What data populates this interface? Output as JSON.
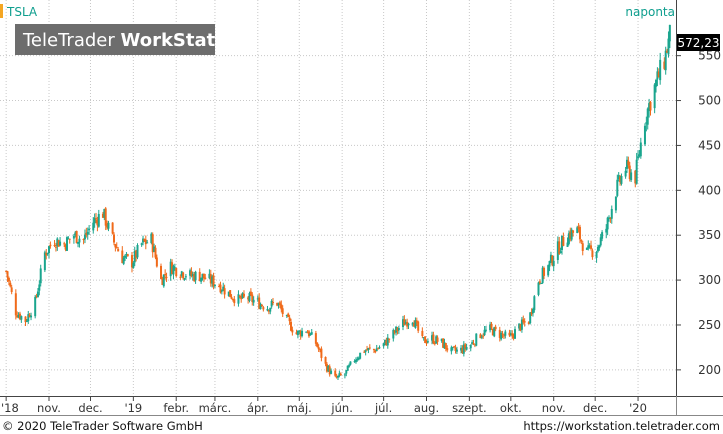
{
  "header": {
    "symbol": "TSLA",
    "interval": "naponta",
    "watermark_light": "TeleTrader ",
    "watermark_bold": "WorkStation"
  },
  "footer": {
    "copyright": "© 2020 TeleTrader Software GmbH",
    "url": "https://workstation.teletrader.com"
  },
  "colors": {
    "up": "#1aa58e",
    "down": "#f06a1a",
    "grid": "#c8c8c8",
    "accent": "#f5a623",
    "last_badge": "#000000"
  },
  "chart_data": {
    "type": "candlestick",
    "symbol": "TSLA",
    "interval": "naponta",
    "last_price": "572,23",
    "y_ticks": [
      "550",
      "500",
      "450",
      "400",
      "350",
      "300",
      "250",
      "200"
    ],
    "y_values": [
      550,
      500,
      450,
      400,
      350,
      300,
      250,
      200
    ],
    "ylim": [
      172,
      612
    ],
    "x_ticks": [
      "'18",
      "nov.",
      "dec.",
      "'19",
      "febr.",
      "márc.",
      "ápr.",
      "máj.",
      "jún.",
      "júl.",
      "aug.",
      "szept.",
      "okt.",
      "nov.",
      "dec.",
      "'20"
    ],
    "x_tick_dates": [
      "2018-10-01",
      "2018-11-01",
      "2018-12-01",
      "2019-01-01",
      "2019-02-01",
      "2019-03-01",
      "2019-04-01",
      "2019-05-01",
      "2019-06-01",
      "2019-07-01",
      "2019-08-01",
      "2019-09-01",
      "2019-10-01",
      "2019-11-01",
      "2019-12-01",
      "2020-01-01"
    ],
    "xlim": [
      "2018-09-28",
      "2020-01-27"
    ],
    "closes": [
      {
        "date": "2018-10-01",
        "close": 310
      },
      {
        "date": "2018-10-08",
        "close": 265
      },
      {
        "date": "2018-10-15",
        "close": 255
      },
      {
        "date": "2018-10-22",
        "close": 275
      },
      {
        "date": "2018-10-29",
        "close": 330
      },
      {
        "date": "2018-11-05",
        "close": 345
      },
      {
        "date": "2018-11-12",
        "close": 340
      },
      {
        "date": "2018-11-19",
        "close": 350
      },
      {
        "date": "2018-11-26",
        "close": 345
      },
      {
        "date": "2018-12-03",
        "close": 365
      },
      {
        "date": "2018-12-10",
        "close": 375
      },
      {
        "date": "2018-12-17",
        "close": 345
      },
      {
        "date": "2018-12-24",
        "close": 325
      },
      {
        "date": "2018-12-31",
        "close": 320
      },
      {
        "date": "2019-01-07",
        "close": 340
      },
      {
        "date": "2019-01-14",
        "close": 345
      },
      {
        "date": "2019-01-21",
        "close": 300
      },
      {
        "date": "2019-01-28",
        "close": 315
      },
      {
        "date": "2019-02-04",
        "close": 310
      },
      {
        "date": "2019-02-11",
        "close": 305
      },
      {
        "date": "2019-02-18",
        "close": 305
      },
      {
        "date": "2019-02-25",
        "close": 300
      },
      {
        "date": "2019-03-04",
        "close": 295
      },
      {
        "date": "2019-03-11",
        "close": 285
      },
      {
        "date": "2019-03-18",
        "close": 278
      },
      {
        "date": "2019-03-25",
        "close": 280
      },
      {
        "date": "2019-04-01",
        "close": 275
      },
      {
        "date": "2019-04-08",
        "close": 270
      },
      {
        "date": "2019-04-15",
        "close": 275
      },
      {
        "date": "2019-04-22",
        "close": 255
      },
      {
        "date": "2019-04-29",
        "close": 240
      },
      {
        "date": "2019-05-06",
        "close": 245
      },
      {
        "date": "2019-05-13",
        "close": 230
      },
      {
        "date": "2019-05-20",
        "close": 205
      },
      {
        "date": "2019-05-27",
        "close": 190
      },
      {
        "date": "2019-06-03",
        "close": 195
      },
      {
        "date": "2019-06-10",
        "close": 212
      },
      {
        "date": "2019-06-17",
        "close": 222
      },
      {
        "date": "2019-06-24",
        "close": 222
      },
      {
        "date": "2019-07-01",
        "close": 228
      },
      {
        "date": "2019-07-08",
        "close": 240
      },
      {
        "date": "2019-07-15",
        "close": 252
      },
      {
        "date": "2019-07-22",
        "close": 258
      },
      {
        "date": "2019-07-29",
        "close": 232
      },
      {
        "date": "2019-08-05",
        "close": 235
      },
      {
        "date": "2019-08-12",
        "close": 230
      },
      {
        "date": "2019-08-19",
        "close": 220
      },
      {
        "date": "2019-08-26",
        "close": 222
      },
      {
        "date": "2019-09-02",
        "close": 228
      },
      {
        "date": "2019-09-09",
        "close": 240
      },
      {
        "date": "2019-09-16",
        "close": 245
      },
      {
        "date": "2019-09-23",
        "close": 240
      },
      {
        "date": "2019-09-30",
        "close": 235
      },
      {
        "date": "2019-10-07",
        "close": 248
      },
      {
        "date": "2019-10-14",
        "close": 255
      },
      {
        "date": "2019-10-21",
        "close": 300
      },
      {
        "date": "2019-10-28",
        "close": 315
      },
      {
        "date": "2019-11-04",
        "close": 335
      },
      {
        "date": "2019-11-11",
        "close": 350
      },
      {
        "date": "2019-11-18",
        "close": 355
      },
      {
        "date": "2019-11-25",
        "close": 330
      },
      {
        "date": "2019-12-02",
        "close": 335
      },
      {
        "date": "2019-12-09",
        "close": 358
      },
      {
        "date": "2019-12-16",
        "close": 400
      },
      {
        "date": "2019-12-23",
        "close": 425
      },
      {
        "date": "2019-12-30",
        "close": 415
      },
      {
        "date": "2020-01-06",
        "close": 480
      },
      {
        "date": "2020-01-13",
        "close": 515
      },
      {
        "date": "2020-01-20",
        "close": 545
      },
      {
        "date": "2020-01-24",
        "close": 572
      }
    ]
  }
}
